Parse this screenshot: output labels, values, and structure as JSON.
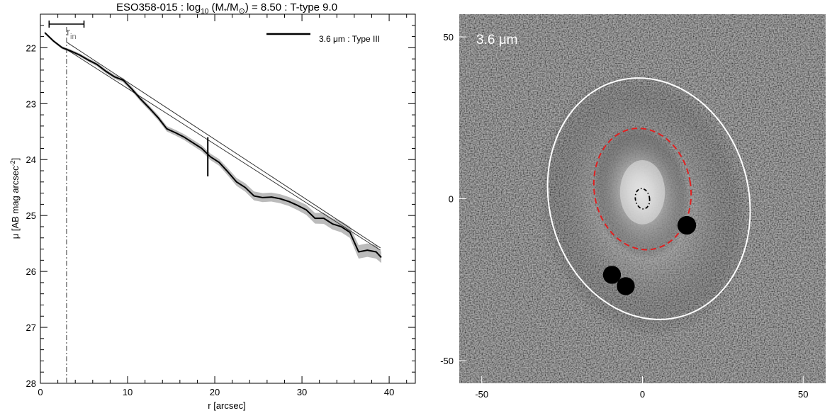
{
  "chart_data": [
    {
      "type": "line",
      "title": "ESO358-015 : log",
      "title_parts": {
        "prefix": "ESO358-015 : log",
        "sub": "10",
        "mass": " (M",
        "mass_sub": "*",
        "slash": "/M",
        "sun": "⊙",
        "suffix": ") = 8.50 : T-type 9.0"
      },
      "xlabel": "r [arcsec]",
      "ylabel_main": "μ [AB mag arcsec",
      "ylabel_sup": "-2",
      "ylabel_end": "]",
      "xlim": [
        0,
        43
      ],
      "ylim": [
        28,
        21.4
      ],
      "y_inverted": true,
      "xticks": [
        "0",
        "10",
        "20",
        "30",
        "40"
      ],
      "yticks": [
        "22",
        "23",
        "24",
        "25",
        "26",
        "27",
        "28"
      ],
      "legend": {
        "label": "3.6 μm : Type III",
        "placement": "top-right",
        "color": "#000000"
      },
      "annotation_rin": {
        "label": "r",
        "sub": "in",
        "x_marker": 3.0
      },
      "scale_bar": {
        "x": [
          1,
          5
        ]
      },
      "break_marker": {
        "x": 19.2,
        "y": [
          23.6,
          24.3
        ]
      },
      "profile": {
        "x": [
          0.5,
          1.5,
          2.5,
          3.5,
          4.5,
          5.5,
          6.5,
          7.5,
          8.5,
          9.5,
          10.5,
          11.5,
          12.5,
          13.5,
          14.5,
          15.5,
          16.5,
          17.5,
          18.5,
          19.5,
          20.5,
          21.5,
          22.5,
          23.5,
          24.5,
          25.5,
          26.5,
          27.5,
          28.5,
          29.5,
          30.5,
          31.5,
          32.5,
          33.5,
          34.5,
          35.5,
          36.5,
          37.5,
          38.5,
          39.1
        ],
        "y": [
          21.73,
          21.88,
          22.0,
          22.06,
          22.13,
          22.22,
          22.3,
          22.42,
          22.52,
          22.58,
          22.74,
          22.92,
          23.08,
          23.25,
          23.45,
          23.52,
          23.6,
          23.7,
          23.8,
          23.95,
          24.05,
          24.22,
          24.4,
          24.5,
          24.65,
          24.68,
          24.67,
          24.7,
          24.75,
          24.82,
          24.9,
          25.05,
          25.05,
          25.15,
          25.2,
          25.3,
          25.65,
          25.62,
          25.65,
          25.75
        ]
      },
      "uncertainty": {
        "x": [
          20.5,
          24.5,
          28.5,
          32.5,
          35.5,
          36.5,
          38.5,
          39.1
        ],
        "half_width": [
          0.06,
          0.08,
          0.08,
          0.1,
          0.1,
          0.12,
          0.12,
          0.1
        ]
      },
      "fit_inner": {
        "x": [
          3.0,
          39.0
        ],
        "y": [
          22.03,
          25.62
        ]
      },
      "fit_outer": {
        "x": [
          3.0,
          39.0
        ],
        "y": [
          21.9,
          25.58
        ]
      },
      "colors": {
        "profile": "#000000",
        "band": "#bbbbbb",
        "rin_line": "#666666",
        "fit": "#333333"
      }
    },
    {
      "type": "heatmap",
      "label": "3.6 μm",
      "xticks": [
        "-50",
        "0",
        "50"
      ],
      "yticks": [
        "50",
        "0",
        "-50"
      ],
      "xlim": [
        -57,
        57
      ],
      "ylim": [
        -57,
        57
      ],
      "galaxy_center": [
        0,
        0
      ],
      "outer_ellipse": {
        "cx": 2,
        "cy": 0,
        "rx": 31,
        "ry": 38,
        "rotation_deg": -15,
        "color": "#ffffff"
      },
      "break_ellipse": {
        "cx": 0,
        "cy": 3,
        "rx": 15,
        "ry": 19,
        "rotation_deg": -10,
        "color": "#e02020"
      },
      "inner_ellipse": {
        "cx": 0,
        "cy": 0,
        "rx": 2.2,
        "ry": 3.2,
        "rotation_deg": -10,
        "color": "#000000"
      },
      "masks": [
        {
          "x": 13.8,
          "y": -8.2,
          "r": 2.9
        },
        {
          "x": -9.5,
          "y": -23.5,
          "r": 2.8
        },
        {
          "x": -5.2,
          "y": -27.0,
          "r": 2.8
        }
      ]
    }
  ]
}
